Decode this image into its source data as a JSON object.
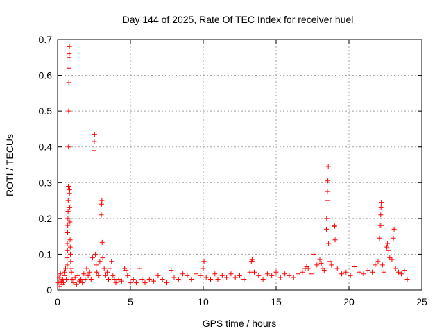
{
  "chart_data": {
    "type": "scatter",
    "title": "Day 144 of 2025, Rate Of TEC Index for receiver huel",
    "xlabel": "GPS time / hours",
    "ylabel": "ROTI / TECUs",
    "xlim": [
      0,
      25
    ],
    "ylim": [
      0,
      0.7
    ],
    "xticks": [
      0,
      5,
      10,
      15,
      20,
      25
    ],
    "yticks": [
      0,
      0.1,
      0.2,
      0.3,
      0.4,
      0.5,
      0.6,
      0.7
    ],
    "grid": true,
    "legend": "none",
    "marker": "plus",
    "color": "#ff0000",
    "series": [
      {
        "points": [
          [
            0.05,
            0.02
          ],
          [
            0.1,
            0.035
          ],
          [
            0.15,
            0.01
          ],
          [
            0.2,
            0.045
          ],
          [
            0.25,
            0.025
          ],
          [
            0.3,
            0.015
          ],
          [
            0.35,
            0.03
          ],
          [
            0.4,
            0.02
          ],
          [
            0.45,
            0.05
          ],
          [
            0.5,
            0.04
          ],
          [
            0.55,
            0.06
          ],
          [
            0.6,
            0.03
          ],
          [
            0.65,
            0.09
          ],
          [
            0.66,
            0.07
          ],
          [
            0.67,
            0.13
          ],
          [
            0.68,
            0.11
          ],
          [
            0.69,
            0.16
          ],
          [
            0.7,
            0.18
          ],
          [
            0.71,
            0.2
          ],
          [
            0.72,
            0.22
          ],
          [
            0.73,
            0.25
          ],
          [
            0.74,
            0.29
          ],
          [
            0.75,
            0.4
          ],
          [
            0.76,
            0.5
          ],
          [
            0.77,
            0.58
          ],
          [
            0.78,
            0.62
          ],
          [
            0.79,
            0.65
          ],
          [
            0.8,
            0.66
          ],
          [
            0.81,
            0.68
          ],
          [
            0.82,
            0.27
          ],
          [
            0.83,
            0.28
          ],
          [
            0.84,
            0.23
          ],
          [
            0.85,
            0.19
          ],
          [
            0.86,
            0.14
          ],
          [
            0.87,
            0.12
          ],
          [
            0.88,
            0.1
          ],
          [
            0.9,
            0.08
          ],
          [
            0.92,
            0.06
          ],
          [
            0.95,
            0.05
          ],
          [
            1.0,
            0.03
          ],
          [
            1.1,
            0.02
          ],
          [
            1.2,
            0.035
          ],
          [
            1.3,
            0.015
          ],
          [
            1.4,
            0.04
          ],
          [
            1.5,
            0.025
          ],
          [
            1.6,
            0.03
          ],
          [
            1.7,
            0.02
          ],
          [
            1.8,
            0.045
          ],
          [
            1.9,
            0.03
          ],
          [
            2.0,
            0.06
          ],
          [
            2.1,
            0.04
          ],
          [
            2.2,
            0.05
          ],
          [
            2.3,
            0.03
          ],
          [
            2.4,
            0.09
          ],
          [
            2.5,
            0.39
          ],
          [
            2.52,
            0.415
          ],
          [
            2.54,
            0.435
          ],
          [
            2.6,
            0.1
          ],
          [
            2.65,
            0.07
          ],
          [
            2.7,
            0.05
          ],
          [
            2.8,
            0.04
          ],
          [
            2.9,
            0.08
          ],
          [
            3.0,
            0.21
          ],
          [
            3.02,
            0.24
          ],
          [
            3.04,
            0.25
          ],
          [
            3.06,
            0.133
          ],
          [
            3.1,
            0.09
          ],
          [
            3.2,
            0.06
          ],
          [
            3.3,
            0.04
          ],
          [
            3.4,
            0.05
          ],
          [
            3.5,
            0.03
          ],
          [
            3.6,
            0.06
          ],
          [
            3.7,
            0.08
          ],
          [
            3.8,
            0.04
          ],
          [
            3.9,
            0.03
          ],
          [
            4.0,
            0.02
          ],
          [
            4.2,
            0.03
          ],
          [
            4.4,
            0.025
          ],
          [
            4.6,
            0.06
          ],
          [
            4.7,
            0.055
          ],
          [
            4.8,
            0.04
          ],
          [
            5.0,
            0.02
          ],
          [
            5.2,
            0.03
          ],
          [
            5.4,
            0.02
          ],
          [
            5.6,
            0.06
          ],
          [
            5.8,
            0.03
          ],
          [
            6.0,
            0.02
          ],
          [
            6.3,
            0.03
          ],
          [
            6.6,
            0.025
          ],
          [
            6.9,
            0.04
          ],
          [
            7.2,
            0.03
          ],
          [
            7.5,
            0.02
          ],
          [
            7.8,
            0.055
          ],
          [
            8.0,
            0.035
          ],
          [
            8.3,
            0.03
          ],
          [
            8.6,
            0.045
          ],
          [
            8.9,
            0.04
          ],
          [
            9.2,
            0.03
          ],
          [
            9.5,
            0.045
          ],
          [
            9.8,
            0.04
          ],
          [
            10.0,
            0.06
          ],
          [
            10.05,
            0.08
          ],
          [
            10.2,
            0.035
          ],
          [
            10.5,
            0.03
          ],
          [
            10.8,
            0.045
          ],
          [
            11.0,
            0.03
          ],
          [
            11.3,
            0.04
          ],
          [
            11.6,
            0.035
          ],
          [
            11.9,
            0.045
          ],
          [
            12.2,
            0.035
          ],
          [
            12.5,
            0.04
          ],
          [
            12.8,
            0.03
          ],
          [
            13.2,
            0.05
          ],
          [
            13.3,
            0.08
          ],
          [
            13.35,
            0.085
          ],
          [
            13.4,
            0.08
          ],
          [
            13.5,
            0.05
          ],
          [
            13.8,
            0.04
          ],
          [
            14.1,
            0.03
          ],
          [
            14.4,
            0.045
          ],
          [
            14.7,
            0.04
          ],
          [
            15.0,
            0.05
          ],
          [
            15.3,
            0.035
          ],
          [
            15.6,
            0.045
          ],
          [
            15.9,
            0.04
          ],
          [
            16.2,
            0.035
          ],
          [
            16.5,
            0.045
          ],
          [
            16.8,
            0.05
          ],
          [
            17.0,
            0.06
          ],
          [
            17.1,
            0.065
          ],
          [
            17.2,
            0.06
          ],
          [
            17.4,
            0.045
          ],
          [
            17.6,
            0.1
          ],
          [
            17.8,
            0.07
          ],
          [
            18.0,
            0.085
          ],
          [
            18.1,
            0.075
          ],
          [
            18.2,
            0.06
          ],
          [
            18.3,
            0.055
          ],
          [
            18.45,
            0.17
          ],
          [
            18.47,
            0.2
          ],
          [
            18.5,
            0.25
          ],
          [
            18.52,
            0.275
          ],
          [
            18.55,
            0.305
          ],
          [
            18.58,
            0.345
          ],
          [
            18.6,
            0.13
          ],
          [
            18.7,
            0.08
          ],
          [
            18.8,
            0.07
          ],
          [
            19.0,
            0.18
          ],
          [
            19.02,
            0.178
          ],
          [
            19.05,
            0.14
          ],
          [
            19.2,
            0.06
          ],
          [
            19.5,
            0.045
          ],
          [
            19.8,
            0.05
          ],
          [
            20.1,
            0.04
          ],
          [
            20.4,
            0.065
          ],
          [
            20.7,
            0.05
          ],
          [
            21.0,
            0.045
          ],
          [
            21.3,
            0.055
          ],
          [
            21.6,
            0.05
          ],
          [
            21.8,
            0.07
          ],
          [
            22.0,
            0.08
          ],
          [
            22.1,
            0.145
          ],
          [
            22.15,
            0.18
          ],
          [
            22.18,
            0.21
          ],
          [
            22.2,
            0.23
          ],
          [
            22.22,
            0.245
          ],
          [
            22.25,
            0.18
          ],
          [
            22.3,
            0.07
          ],
          [
            22.4,
            0.05
          ],
          [
            22.6,
            0.12
          ],
          [
            22.65,
            0.13
          ],
          [
            22.7,
            0.11
          ],
          [
            22.8,
            0.09
          ],
          [
            22.95,
            0.085
          ],
          [
            23.05,
            0.145
          ],
          [
            23.1,
            0.17
          ],
          [
            23.2,
            0.06
          ],
          [
            23.4,
            0.05
          ],
          [
            23.6,
            0.045
          ],
          [
            23.8,
            0.055
          ],
          [
            24.0,
            0.03
          ]
        ]
      }
    ]
  }
}
